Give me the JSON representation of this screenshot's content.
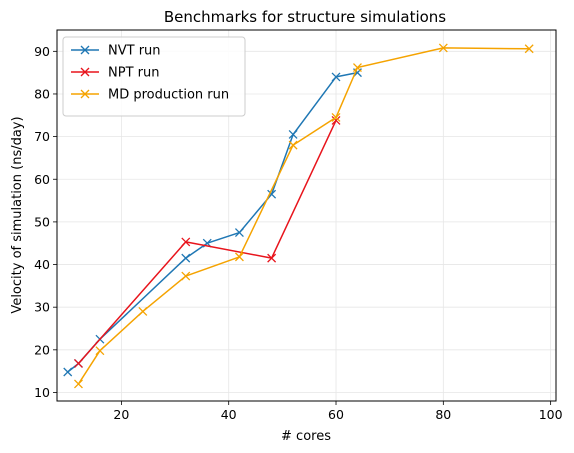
{
  "chart_data": {
    "type": "line",
    "title": "Benchmarks for structure simulations",
    "xlabel": "# cores",
    "ylabel": "Velocity of simulation (ns/day)",
    "xlim": [
      8,
      101
    ],
    "ylim": [
      8,
      95
    ],
    "xticks": [
      20,
      40,
      60,
      80,
      100
    ],
    "yticks": [
      10,
      20,
      30,
      40,
      50,
      60,
      70,
      80,
      90
    ],
    "grid": true,
    "legend_position": "top-left",
    "marker": "x",
    "series": [
      {
        "name": "NVT run",
        "color": "#1f77b4",
        "x": [
          10,
          12,
          16,
          32,
          36,
          42,
          48,
          52,
          60,
          64
        ],
        "y": [
          14.8,
          16.8,
          22.5,
          41.5,
          45.0,
          47.5,
          56.5,
          70.5,
          84.0,
          85.0
        ]
      },
      {
        "name": "NPT run",
        "color": "#e8141c",
        "x": [
          12,
          32,
          48,
          60
        ],
        "y": [
          16.8,
          45.3,
          41.5,
          73.8
        ]
      },
      {
        "name": "MD production run",
        "color": "#f5a300",
        "x": [
          12,
          16,
          24,
          32,
          42,
          52,
          60,
          64,
          80,
          96
        ],
        "y": [
          12.0,
          19.8,
          29.0,
          37.3,
          41.8,
          68.0,
          74.5,
          86.2,
          90.8,
          90.6
        ]
      }
    ]
  }
}
